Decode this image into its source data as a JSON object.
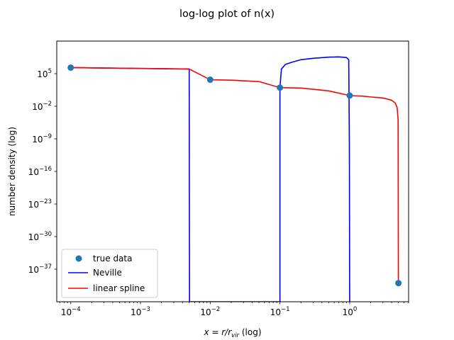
{
  "chart_data": {
    "type": "line",
    "title": "log-log plot of n(x)",
    "xlabel_main": "x = r/r",
    "xlabel_sub": "vir",
    "xlabel_suffix": " (log)",
    "ylabel": "number density (log)",
    "xscale": "log",
    "yscale": "log",
    "xlim": [
      6.3e-05,
      7.0
    ],
    "ylim": [
      1e-44,
      1000000000000.0
    ],
    "x_ticks": [
      {
        "base": "10",
        "exp": "−4",
        "value": 0.0001
      },
      {
        "base": "10",
        "exp": "−3",
        "value": 0.001
      },
      {
        "base": "10",
        "exp": "−2",
        "value": 0.01
      },
      {
        "base": "10",
        "exp": "−1",
        "value": 0.1
      },
      {
        "base": "10",
        "exp": "0",
        "value": 1
      }
    ],
    "y_ticks": [
      {
        "base": "10",
        "exp": "5",
        "value": 100000.0
      },
      {
        "base": "10",
        "exp": "−2",
        "value": 0.01
      },
      {
        "base": "10",
        "exp": "−9",
        "value": 1e-09
      },
      {
        "base": "10",
        "exp": "−16",
        "value": 1e-16
      },
      {
        "base": "10",
        "exp": "−23",
        "value": 1e-23
      },
      {
        "base": "10",
        "exp": "−30",
        "value": 1e-30
      },
      {
        "base": "10",
        "exp": "−37",
        "value": 1e-37
      }
    ],
    "legend": {
      "placement": "lower-left"
    },
    "series": [
      {
        "name": "true data",
        "kind": "scatter",
        "color": "#1f77b4",
        "x": [
          0.0001,
          0.01,
          0.1,
          1,
          5
        ],
        "y": [
          2000000.0,
          5000.0,
          100.0,
          2.0,
          1e-40
        ]
      },
      {
        "name": "Neville",
        "kind": "line",
        "color": "#0000ff",
        "x": [
          0.0001,
          0.005,
          0.00502,
          0.00505,
          0.09,
          0.1,
          0.1,
          0.105,
          0.12,
          0.15,
          0.2,
          0.3,
          0.5,
          0.7,
          0.9,
          0.97,
          0.99,
          1.0
        ],
        "y": [
          2000000.0,
          1000000.0,
          1e-20,
          1e-44,
          1e-44,
          1e-44,
          100.0,
          1000000.0,
          10000000.0,
          30000000.0,
          100000000.0,
          200000000.0,
          350000000.0,
          400000000.0,
          300000000.0,
          100000000.0,
          1e-10,
          1e-44
        ]
      },
      {
        "name": "linear spline",
        "kind": "line",
        "color": "#ff0000",
        "x": [
          0.0001,
          0.005,
          0.01,
          0.02,
          0.05,
          0.1,
          0.2,
          0.5,
          1.0,
          1.5,
          2,
          3,
          4,
          4.5,
          4.8,
          4.95,
          5.0
        ],
        "y": [
          2000000.0,
          1000000.0,
          5000.0,
          4000.0,
          2000.0,
          100.0,
          80,
          20,
          2,
          1.5,
          1,
          0.6,
          0.2,
          0.05,
          0.005,
          1e-05,
          1e-40
        ]
      }
    ]
  }
}
